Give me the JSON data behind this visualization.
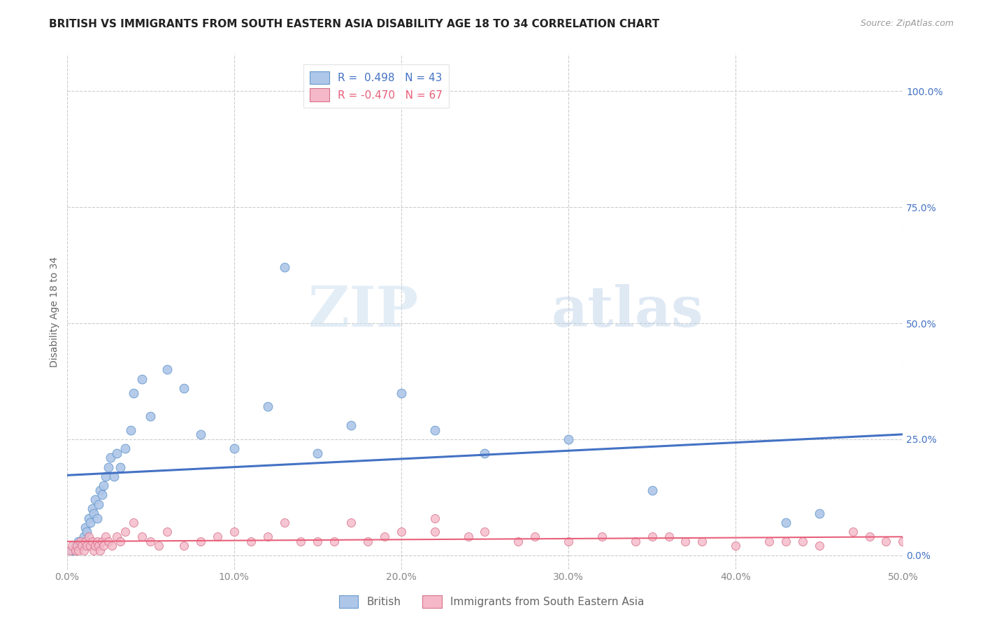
{
  "title": "BRITISH VS IMMIGRANTS FROM SOUTH EASTERN ASIA DISABILITY AGE 18 TO 34 CORRELATION CHART",
  "source": "Source: ZipAtlas.com",
  "ylabel": "Disability Age 18 to 34",
  "xticks": [
    0,
    10,
    20,
    30,
    40,
    50
  ],
  "yticks": [
    0,
    25,
    50,
    75,
    100
  ],
  "xlim": [
    0,
    50
  ],
  "ylim": [
    -3,
    108
  ],
  "blue_R": 0.498,
  "blue_N": 43,
  "pink_R": -0.47,
  "pink_N": 67,
  "blue_color": "#aec6e8",
  "blue_line_color": "#4472c4",
  "blue_edge_color": "#6699cc",
  "pink_color": "#f5b8c8",
  "pink_line_color": "#e8607a",
  "pink_edge_color": "#d47088",
  "legend_blue_label": "R =  0.498   N = 43",
  "legend_pink_label": "R = -0.470   N = 67",
  "watermark": "ZIPatlas",
  "blue_scatter_x": [
    0.3,
    0.5,
    0.7,
    0.8,
    1.0,
    1.1,
    1.2,
    1.3,
    1.4,
    1.5,
    1.6,
    1.7,
    1.8,
    1.9,
    2.0,
    2.1,
    2.2,
    2.3,
    2.5,
    2.6,
    2.8,
    3.0,
    3.2,
    3.5,
    3.8,
    4.0,
    4.5,
    5.0,
    6.0,
    7.0,
    8.0,
    10.0,
    12.0,
    13.0,
    15.0,
    17.0,
    20.0,
    22.0,
    25.0,
    30.0,
    35.0,
    43.0,
    45.0
  ],
  "blue_scatter_y": [
    1,
    2,
    3,
    2,
    4,
    6,
    5,
    8,
    7,
    10,
    9,
    12,
    8,
    11,
    14,
    13,
    15,
    17,
    19,
    21,
    17,
    22,
    19,
    23,
    27,
    35,
    38,
    30,
    40,
    36,
    26,
    23,
    32,
    62,
    22,
    28,
    35,
    27,
    22,
    25,
    14,
    7,
    9
  ],
  "pink_scatter_x": [
    0.2,
    0.3,
    0.5,
    0.6,
    0.7,
    0.8,
    0.9,
    1.0,
    1.1,
    1.2,
    1.3,
    1.4,
    1.5,
    1.6,
    1.7,
    1.8,
    1.9,
    2.0,
    2.1,
    2.2,
    2.3,
    2.5,
    2.7,
    3.0,
    3.2,
    3.5,
    4.0,
    4.5,
    5.0,
    5.5,
    6.0,
    7.0,
    8.0,
    9.0,
    10.0,
    11.0,
    12.0,
    13.0,
    14.0,
    15.0,
    16.0,
    17.0,
    18.0,
    19.0,
    20.0,
    22.0,
    24.0,
    25.0,
    27.0,
    28.0,
    30.0,
    32.0,
    34.0,
    35.0,
    37.0,
    38.0,
    40.0,
    42.0,
    43.0,
    44.0,
    45.0,
    47.0,
    48.0,
    49.0,
    50.0,
    36.0,
    22.0
  ],
  "pink_scatter_y": [
    1,
    2,
    1,
    2,
    1,
    3,
    2,
    1,
    3,
    2,
    4,
    2,
    3,
    1,
    2,
    3,
    2,
    1,
    3,
    2,
    4,
    3,
    2,
    4,
    3,
    5,
    7,
    4,
    3,
    2,
    5,
    2,
    3,
    4,
    5,
    3,
    4,
    7,
    3,
    3,
    3,
    7,
    3,
    4,
    5,
    5,
    4,
    5,
    3,
    4,
    3,
    4,
    3,
    4,
    3,
    3,
    2,
    3,
    3,
    3,
    2,
    5,
    4,
    3,
    3,
    4,
    8
  ],
  "grid_color": "#cccccc",
  "background_color": "#ffffff",
  "title_fontsize": 11,
  "axis_label_fontsize": 10,
  "tick_fontsize": 10,
  "right_tick_color": "#4472c4",
  "left_tick_color": "#888888"
}
